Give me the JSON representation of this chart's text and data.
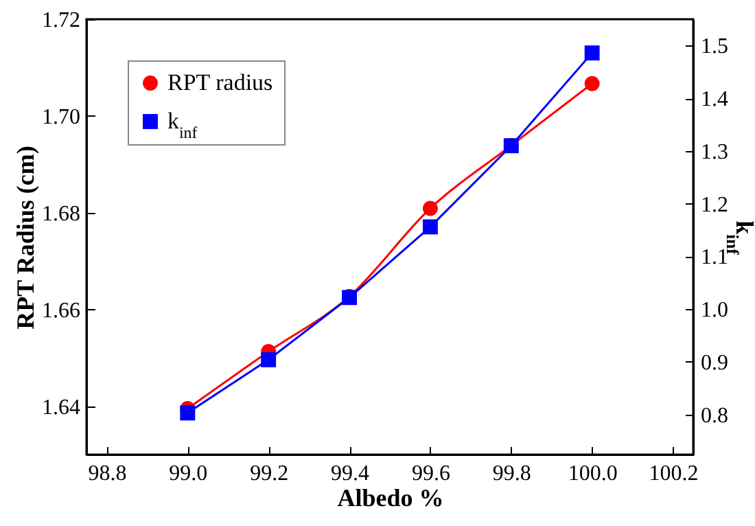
{
  "chart_data": {
    "type": "line",
    "xlabel": "Albedo %",
    "ylabel": "RPT Radius (cm)",
    "y2label": "k$_{inf}$",
    "x": [
      99.0,
      99.2,
      99.4,
      99.6,
      99.8,
      100.0
    ],
    "series": [
      {
        "name": "RPT radius",
        "color": "#ff0000",
        "marker": "circle",
        "values": [
          1.6395,
          1.6513,
          1.6627,
          1.6809,
          1.6939,
          1.7067
        ]
      },
      {
        "name": "k$_{inf}$",
        "color": "#0000ff",
        "marker": "square",
        "axis": "y2",
        "values": [
          0.803,
          0.904,
          1.022,
          1.156,
          1.31,
          1.486
        ]
      }
    ],
    "xlim": [
      98.75,
      100.25
    ],
    "xticks": [
      {
        "value": 98.8,
        "label": "98.8"
      },
      {
        "value": 99,
        "label": "99.0"
      },
      {
        "value": 99.2,
        "label": "99.2"
      },
      {
        "value": 99.4,
        "label": "99.4"
      },
      {
        "value": 99.6,
        "label": "99.6"
      },
      {
        "value": 99.8,
        "label": "99.8"
      },
      {
        "value": 100,
        "label": "100.0"
      },
      {
        "value": 100.2,
        "label": "100.2"
      }
    ],
    "ylim": [
      1.63,
      1.72
    ],
    "yticks": [
      1.64,
      1.66,
      1.68,
      {
        "value": 1.7,
        "label": "1.70"
      },
      1.72
    ],
    "y2lim": [
      0.724,
      1.55
    ],
    "y2ticks": [
      0.8,
      0.9,
      {
        "value": 1,
        "label": "1.0"
      },
      1.1,
      1.2,
      1.3,
      1.4,
      1.5
    ],
    "grid": false,
    "legend": "top left"
  }
}
